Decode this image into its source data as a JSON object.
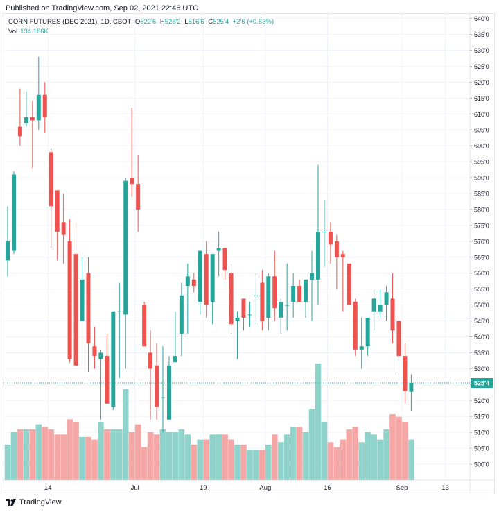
{
  "header": {
    "published": "Published on TradingView.com, Sep 02, 2021 22:46 UTC"
  },
  "legend": {
    "symbol": "CORN FUTURES (DEC 2021), 1D, CBOT",
    "o_label": "O",
    "o": "522'6",
    "h_label": "H",
    "h": "528'2",
    "l_label": "L",
    "l": "516'6",
    "c_label": "C",
    "c": "525'4",
    "change": "+2'6 (+0.53%)",
    "vol_label": "Vol",
    "vol": "134.166K"
  },
  "footer": {
    "brand": "TradingView"
  },
  "colors": {
    "up": "#26a69a",
    "down": "#ef5350",
    "up_vol": "#8fd3cb",
    "down_vol": "#f4a7a5",
    "last_line": "#26a69a"
  },
  "chart_data": {
    "type": "candlestick",
    "title": "CORN FUTURES (DEC 2021), 1D, CBOT",
    "y_range": [
      495,
      641
    ],
    "y_ticks": [
      "500'0",
      "505'0",
      "510'0",
      "515'0",
      "520'0",
      "525'0",
      "530'0",
      "535'0",
      "540'0",
      "545'0",
      "550'0",
      "555'0",
      "560'0",
      "565'0",
      "570'0",
      "575'0",
      "580'0",
      "585'0",
      "590'0",
      "595'0",
      "600'0",
      "605'0",
      "610'0",
      "615'0",
      "620'0",
      "625'0",
      "630'0",
      "635'0",
      "640'0"
    ],
    "x_ticks": [
      {
        "label": "14",
        "index": 6.5
      },
      {
        "label": "Jul",
        "index": 20.5
      },
      {
        "label": "19",
        "index": 31.5
      },
      {
        "label": "Aug",
        "index": 41.5
      },
      {
        "label": "16",
        "index": 51.5
      },
      {
        "label": "Sep",
        "index": 63.5
      },
      {
        "label": "13",
        "index": 70.5
      }
    ],
    "last_price": 525.5,
    "last_price_label": "525'4",
    "volume_max": 230,
    "candles": [
      {
        "o": 564,
        "h": 581,
        "l": 559,
        "c": 570,
        "v": 70
      },
      {
        "o": 567,
        "h": 592,
        "l": 566,
        "c": 591,
        "v": 95
      },
      {
        "o": 606,
        "h": 618,
        "l": 600,
        "c": 603,
        "v": 100
      },
      {
        "o": 607,
        "h": 617,
        "l": 606,
        "c": 609,
        "v": 100
      },
      {
        "o": 609,
        "h": 614,
        "l": 593,
        "c": 608,
        "v": 100
      },
      {
        "o": 608,
        "h": 628,
        "l": 605,
        "c": 616,
        "v": 110
      },
      {
        "o": 616,
        "h": 620,
        "l": 604,
        "c": 609,
        "v": 105
      },
      {
        "o": 598,
        "h": 599,
        "l": 568,
        "c": 581,
        "v": 100
      },
      {
        "o": 586,
        "h": 586,
        "l": 564,
        "c": 573,
        "v": 90
      },
      {
        "o": 576,
        "h": 585,
        "l": 563,
        "c": 572,
        "v": 90
      },
      {
        "o": 570,
        "h": 577,
        "l": 532,
        "c": 533,
        "v": 120
      },
      {
        "o": 566,
        "h": 576,
        "l": 531,
        "c": 531,
        "v": 115
      },
      {
        "o": 545,
        "h": 565,
        "l": 545,
        "c": 558,
        "v": 85
      },
      {
        "o": 560,
        "h": 565,
        "l": 529,
        "c": 538,
        "v": 85
      },
      {
        "o": 537,
        "h": 543,
        "l": 530,
        "c": 534,
        "v": 80
      },
      {
        "o": 533,
        "h": 536,
        "l": 514,
        "c": 535,
        "v": 115
      },
      {
        "o": 534,
        "h": 541,
        "l": 519,
        "c": 519,
        "v": 100
      },
      {
        "o": 518,
        "h": 548,
        "l": 517,
        "c": 548,
        "v": 100
      },
      {
        "o": 548,
        "h": 557,
        "l": 527,
        "c": 548,
        "v": 100
      },
      {
        "o": 547,
        "h": 590,
        "l": 530,
        "c": 589,
        "v": 180
      },
      {
        "o": 590,
        "h": 612,
        "l": 584,
        "c": 588,
        "v": 95
      },
      {
        "o": 588,
        "h": 597,
        "l": 573,
        "c": 580,
        "v": 110
      },
      {
        "o": 550,
        "h": 551,
        "l": 537,
        "c": 537,
        "v": 65
      },
      {
        "o": 535,
        "h": 542,
        "l": 514,
        "c": 530,
        "v": 95
      },
      {
        "o": 531,
        "h": 538,
        "l": 514,
        "c": 518,
        "v": 90
      },
      {
        "o": 521,
        "h": 537,
        "l": 510,
        "c": 521,
        "v": 100
      },
      {
        "o": 514,
        "h": 534,
        "l": 514,
        "c": 531,
        "v": 95
      },
      {
        "o": 532,
        "h": 548,
        "l": 532,
        "c": 534,
        "v": 95
      },
      {
        "o": 541,
        "h": 557,
        "l": 534,
        "c": 553,
        "v": 100
      },
      {
        "o": 556,
        "h": 563,
        "l": 541,
        "c": 559,
        "v": 90
      },
      {
        "o": 558,
        "h": 560,
        "l": 554,
        "c": 556,
        "v": 70
      },
      {
        "o": 551,
        "h": 567,
        "l": 547,
        "c": 567,
        "v": 80
      },
      {
        "o": 566,
        "h": 570,
        "l": 546,
        "c": 550,
        "v": 80
      },
      {
        "o": 551,
        "h": 566,
        "l": 544,
        "c": 566,
        "v": 90
      },
      {
        "o": 567,
        "h": 573,
        "l": 559,
        "c": 568,
        "v": 90
      },
      {
        "o": 568,
        "h": 568,
        "l": 558,
        "c": 561,
        "v": 90
      },
      {
        "o": 560,
        "h": 563,
        "l": 541,
        "c": 544,
        "v": 80
      },
      {
        "o": 545,
        "h": 548,
        "l": 533,
        "c": 546,
        "v": 70
      },
      {
        "o": 552,
        "h": 552,
        "l": 542,
        "c": 546,
        "v": 70
      },
      {
        "o": 547,
        "h": 551,
        "l": 543,
        "c": 547,
        "v": 60
      },
      {
        "o": 553,
        "h": 560,
        "l": 544,
        "c": 553,
        "v": 60
      },
      {
        "o": 557,
        "h": 561,
        "l": 542,
        "c": 545,
        "v": 60
      },
      {
        "o": 546,
        "h": 560,
        "l": 542,
        "c": 559,
        "v": 70
      },
      {
        "o": 559,
        "h": 567,
        "l": 545,
        "c": 549,
        "v": 90
      },
      {
        "o": 546,
        "h": 552,
        "l": 541,
        "c": 551,
        "v": 75
      },
      {
        "o": 550,
        "h": 563,
        "l": 542,
        "c": 550,
        "v": 90
      },
      {
        "o": 551,
        "h": 560,
        "l": 546,
        "c": 556,
        "v": 105
      },
      {
        "o": 556,
        "h": 558,
        "l": 551,
        "c": 551,
        "v": 105
      },
      {
        "o": 551,
        "h": 558,
        "l": 546,
        "c": 558,
        "v": 95
      },
      {
        "o": 558,
        "h": 567,
        "l": 545,
        "c": 560,
        "v": 140
      },
      {
        "o": 558,
        "h": 594,
        "l": 550,
        "c": 573,
        "v": 230
      },
      {
        "o": 573,
        "h": 583,
        "l": 562,
        "c": 573,
        "v": 115
      },
      {
        "o": 573,
        "h": 576,
        "l": 563,
        "c": 569,
        "v": 75
      },
      {
        "o": 570,
        "h": 572,
        "l": 555,
        "c": 565,
        "v": 65
      },
      {
        "o": 566,
        "h": 567,
        "l": 548,
        "c": 565,
        "v": 80
      },
      {
        "o": 563,
        "h": 563,
        "l": 550,
        "c": 550,
        "v": 100
      },
      {
        "o": 551,
        "h": 552,
        "l": 534,
        "c": 536,
        "v": 105
      },
      {
        "o": 536,
        "h": 546,
        "l": 530,
        "c": 537,
        "v": 75
      },
      {
        "o": 537,
        "h": 546,
        "l": 534,
        "c": 546,
        "v": 95
      },
      {
        "o": 548,
        "h": 555,
        "l": 542,
        "c": 552,
        "v": 90
      },
      {
        "o": 548,
        "h": 555,
        "l": 546,
        "c": 550,
        "v": 80
      },
      {
        "o": 550,
        "h": 556,
        "l": 545,
        "c": 554,
        "v": 100
      },
      {
        "o": 552,
        "h": 560,
        "l": 538,
        "c": 542,
        "v": 130
      },
      {
        "o": 545,
        "h": 546,
        "l": 528,
        "c": 534,
        "v": 125
      },
      {
        "o": 534,
        "h": 538,
        "l": 519,
        "c": 523,
        "v": 115
      },
      {
        "o": 522.75,
        "h": 528.25,
        "l": 516.75,
        "c": 525.5,
        "v": 80
      }
    ]
  }
}
